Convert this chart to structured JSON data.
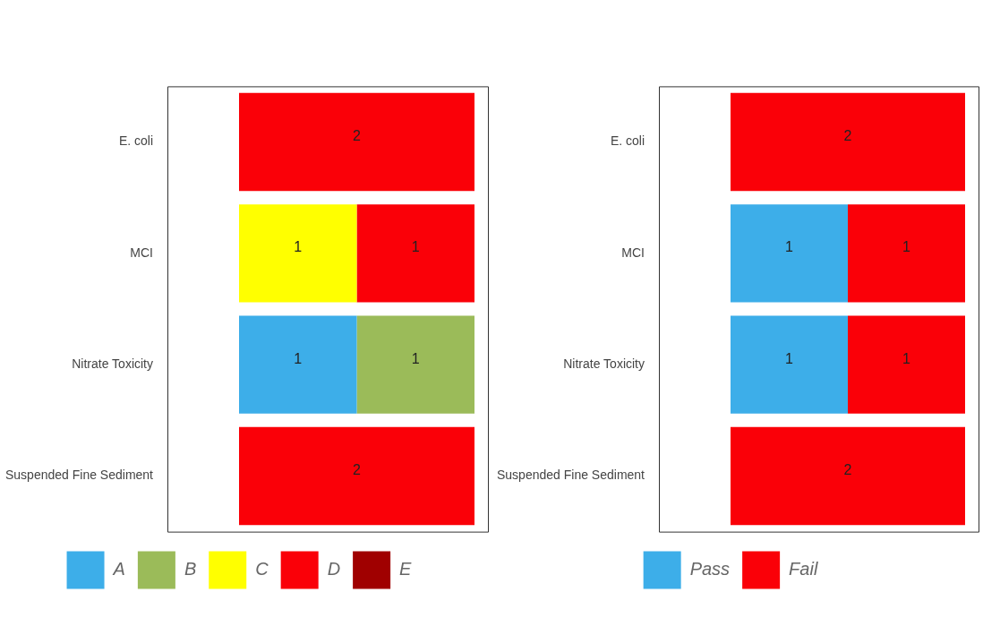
{
  "chart_data": [
    {
      "type": "bar",
      "orientation": "horizontal",
      "stacked": true,
      "data_labels": true,
      "legend": "bottom",
      "grid": false,
      "tick_labels": "y",
      "categories": [
        "E. coli",
        "MCI",
        "Nitrate Toxicity",
        "Suspended Fine Sediment"
      ],
      "series": [
        {
          "name": "A",
          "color": "#3daee9",
          "values": [
            null,
            null,
            1,
            null
          ]
        },
        {
          "name": "B",
          "color": "#9bbb59",
          "values": [
            null,
            null,
            1,
            null
          ]
        },
        {
          "name": "C",
          "color": "#ffff00",
          "values": [
            null,
            1,
            null,
            null
          ]
        },
        {
          "name": "D",
          "color": "#fa0008",
          "values": [
            2,
            1,
            null,
            2
          ]
        },
        {
          "name": "E",
          "color": "#a00000",
          "values": [
            null,
            null,
            null,
            null
          ]
        }
      ]
    },
    {
      "type": "bar",
      "orientation": "horizontal",
      "stacked": true,
      "data_labels": true,
      "legend": "bottom",
      "grid": false,
      "tick_labels": "y",
      "categories": [
        "E. coli",
        "MCI",
        "Nitrate Toxicity",
        "Suspended Fine Sediment"
      ],
      "series": [
        {
          "name": "Pass",
          "color": "#3daee9",
          "values": [
            null,
            1,
            1,
            null
          ]
        },
        {
          "name": "Fail",
          "color": "#fa0008",
          "values": [
            2,
            1,
            1,
            2
          ]
        }
      ]
    }
  ]
}
